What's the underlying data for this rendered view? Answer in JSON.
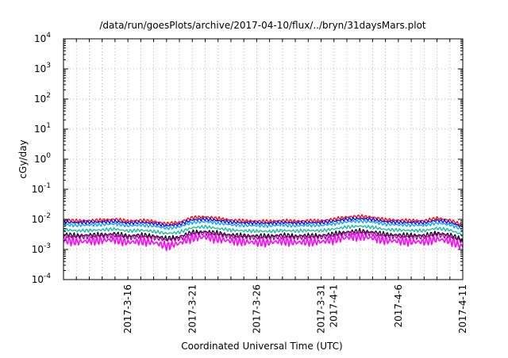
{
  "chart_data": {
    "type": "line",
    "title": "/data/run/goesPlots/archive/2017-04-10/flux/../bryn/31daysMars.plot",
    "xlabel": "Coordinated Universal Time (UTC)",
    "ylabel": "cGy/day",
    "yscale": "log",
    "ylim": [
      0.0001,
      10000
    ],
    "xlim": [
      "2017-03-11",
      "2017-04-11"
    ],
    "grid": true,
    "y_ticks": [
      {
        "base": "10",
        "exp": "-4"
      },
      {
        "base": "10",
        "exp": "-3"
      },
      {
        "base": "10",
        "exp": "-2"
      },
      {
        "base": "10",
        "exp": "-1"
      },
      {
        "base": "10",
        "exp": "0"
      },
      {
        "base": "10",
        "exp": "1"
      },
      {
        "base": "10",
        "exp": "2"
      },
      {
        "base": "10",
        "exp": "3"
      },
      {
        "base": "10",
        "exp": "4"
      }
    ],
    "x_ticks": [
      {
        "date": "2017-03-16",
        "label": "2017-3-16"
      },
      {
        "date": "2017-03-21",
        "label": "2017-3-21"
      },
      {
        "date": "2017-03-26",
        "label": "2017-3-26"
      },
      {
        "date": "2017-03-31",
        "label": "2017-3-31"
      },
      {
        "date": "2017-04-01",
        "label": "2017-4-1"
      },
      {
        "date": "2017-04-06",
        "label": "2017-4-6"
      },
      {
        "date": "2017-04-11",
        "label": "2017-4-11"
      }
    ],
    "series": [
      {
        "color": "#ff0000",
        "x_start": "2017-03-11",
        "x_step_days": 1,
        "values": [
          0.0098,
          0.009,
          0.0092,
          0.0095,
          0.0102,
          0.0088,
          0.0094,
          0.0086,
          0.0072,
          0.008,
          0.0115,
          0.0122,
          0.0108,
          0.0095,
          0.009,
          0.0088,
          0.0086,
          0.0092,
          0.0087,
          0.0091,
          0.009,
          0.0102,
          0.012,
          0.0128,
          0.0118,
          0.0098,
          0.0094,
          0.0092,
          0.009,
          0.011,
          0.0094,
          0.0062
        ]
      },
      {
        "color": "#0000ff",
        "x_start": "2017-03-11",
        "x_step_days": 1,
        "values": [
          0.0083,
          0.0078,
          0.008,
          0.0082,
          0.0086,
          0.0075,
          0.008,
          0.0073,
          0.0062,
          0.0068,
          0.0096,
          0.0102,
          0.0091,
          0.0081,
          0.0077,
          0.0076,
          0.0074,
          0.0079,
          0.0075,
          0.0078,
          0.0077,
          0.0087,
          0.0101,
          0.0107,
          0.0099,
          0.0084,
          0.008,
          0.0079,
          0.0077,
          0.0093,
          0.008,
          0.0054
        ]
      },
      {
        "color": "#00a0ff",
        "x_start": "2017-03-11",
        "x_step_days": 1,
        "values": [
          0.0068,
          0.0063,
          0.0065,
          0.0067,
          0.0071,
          0.0061,
          0.0065,
          0.006,
          0.0051,
          0.0056,
          0.0079,
          0.0084,
          0.0075,
          0.0066,
          0.0063,
          0.0062,
          0.0061,
          0.0065,
          0.0061,
          0.0064,
          0.0063,
          0.0071,
          0.0083,
          0.0088,
          0.0082,
          0.0069,
          0.0066,
          0.0065,
          0.0063,
          0.0076,
          0.0066,
          0.0045
        ]
      },
      {
        "color": "#00c0a0",
        "x_start": "2017-03-11",
        "x_step_days": 1,
        "values": [
          0.0046,
          0.0042,
          0.0043,
          0.0045,
          0.0048,
          0.0041,
          0.0044,
          0.004,
          0.0034,
          0.0037,
          0.0053,
          0.0057,
          0.005,
          0.0044,
          0.0042,
          0.0041,
          0.004,
          0.0043,
          0.0041,
          0.0043,
          0.0042,
          0.0048,
          0.0056,
          0.006,
          0.0055,
          0.0046,
          0.0044,
          0.0043,
          0.0042,
          0.0051,
          0.0044,
          0.003
        ]
      },
      {
        "color": "#000000",
        "x_start": "2017-03-11",
        "x_step_days": 1,
        "values": [
          0.0032,
          0.0029,
          0.003,
          0.0031,
          0.0033,
          0.0028,
          0.003,
          0.0028,
          0.0023,
          0.0026,
          0.0037,
          0.0039,
          0.0035,
          0.003,
          0.0029,
          0.0028,
          0.0028,
          0.003,
          0.0028,
          0.0029,
          0.0029,
          0.0033,
          0.0038,
          0.0041,
          0.0038,
          0.0032,
          0.003,
          0.003,
          0.0029,
          0.0035,
          0.003,
          0.0021
        ]
      },
      {
        "color": "#a000a0",
        "x_start": "2017-03-11",
        "x_step_days": 1,
        "values": [
          0.0028,
          0.0026,
          0.0027,
          0.0028,
          0.0029,
          0.0025,
          0.0027,
          0.0025,
          0.0021,
          0.0023,
          0.0033,
          0.0035,
          0.0031,
          0.0027,
          0.0026,
          0.0025,
          0.0025,
          0.0026,
          0.0025,
          0.0026,
          0.0026,
          0.0029,
          0.0034,
          0.0036,
          0.0033,
          0.0028,
          0.0027,
          0.0026,
          0.0026,
          0.0031,
          0.0027,
          0.0018
        ]
      },
      {
        "color": "#ff00ff",
        "x_start": "2017-03-11",
        "x_step_days": 1,
        "values": [
          0.002,
          0.0018,
          0.0019,
          0.002,
          0.0021,
          0.0017,
          0.0019,
          0.0017,
          0.0013,
          0.0016,
          0.0024,
          0.0026,
          0.0022,
          0.0019,
          0.0018,
          0.0017,
          0.0017,
          0.0019,
          0.0017,
          0.0018,
          0.0018,
          0.0021,
          0.0025,
          0.0027,
          0.0024,
          0.002,
          0.0019,
          0.0018,
          0.0018,
          0.0022,
          0.0019,
          0.0012
        ]
      }
    ]
  }
}
